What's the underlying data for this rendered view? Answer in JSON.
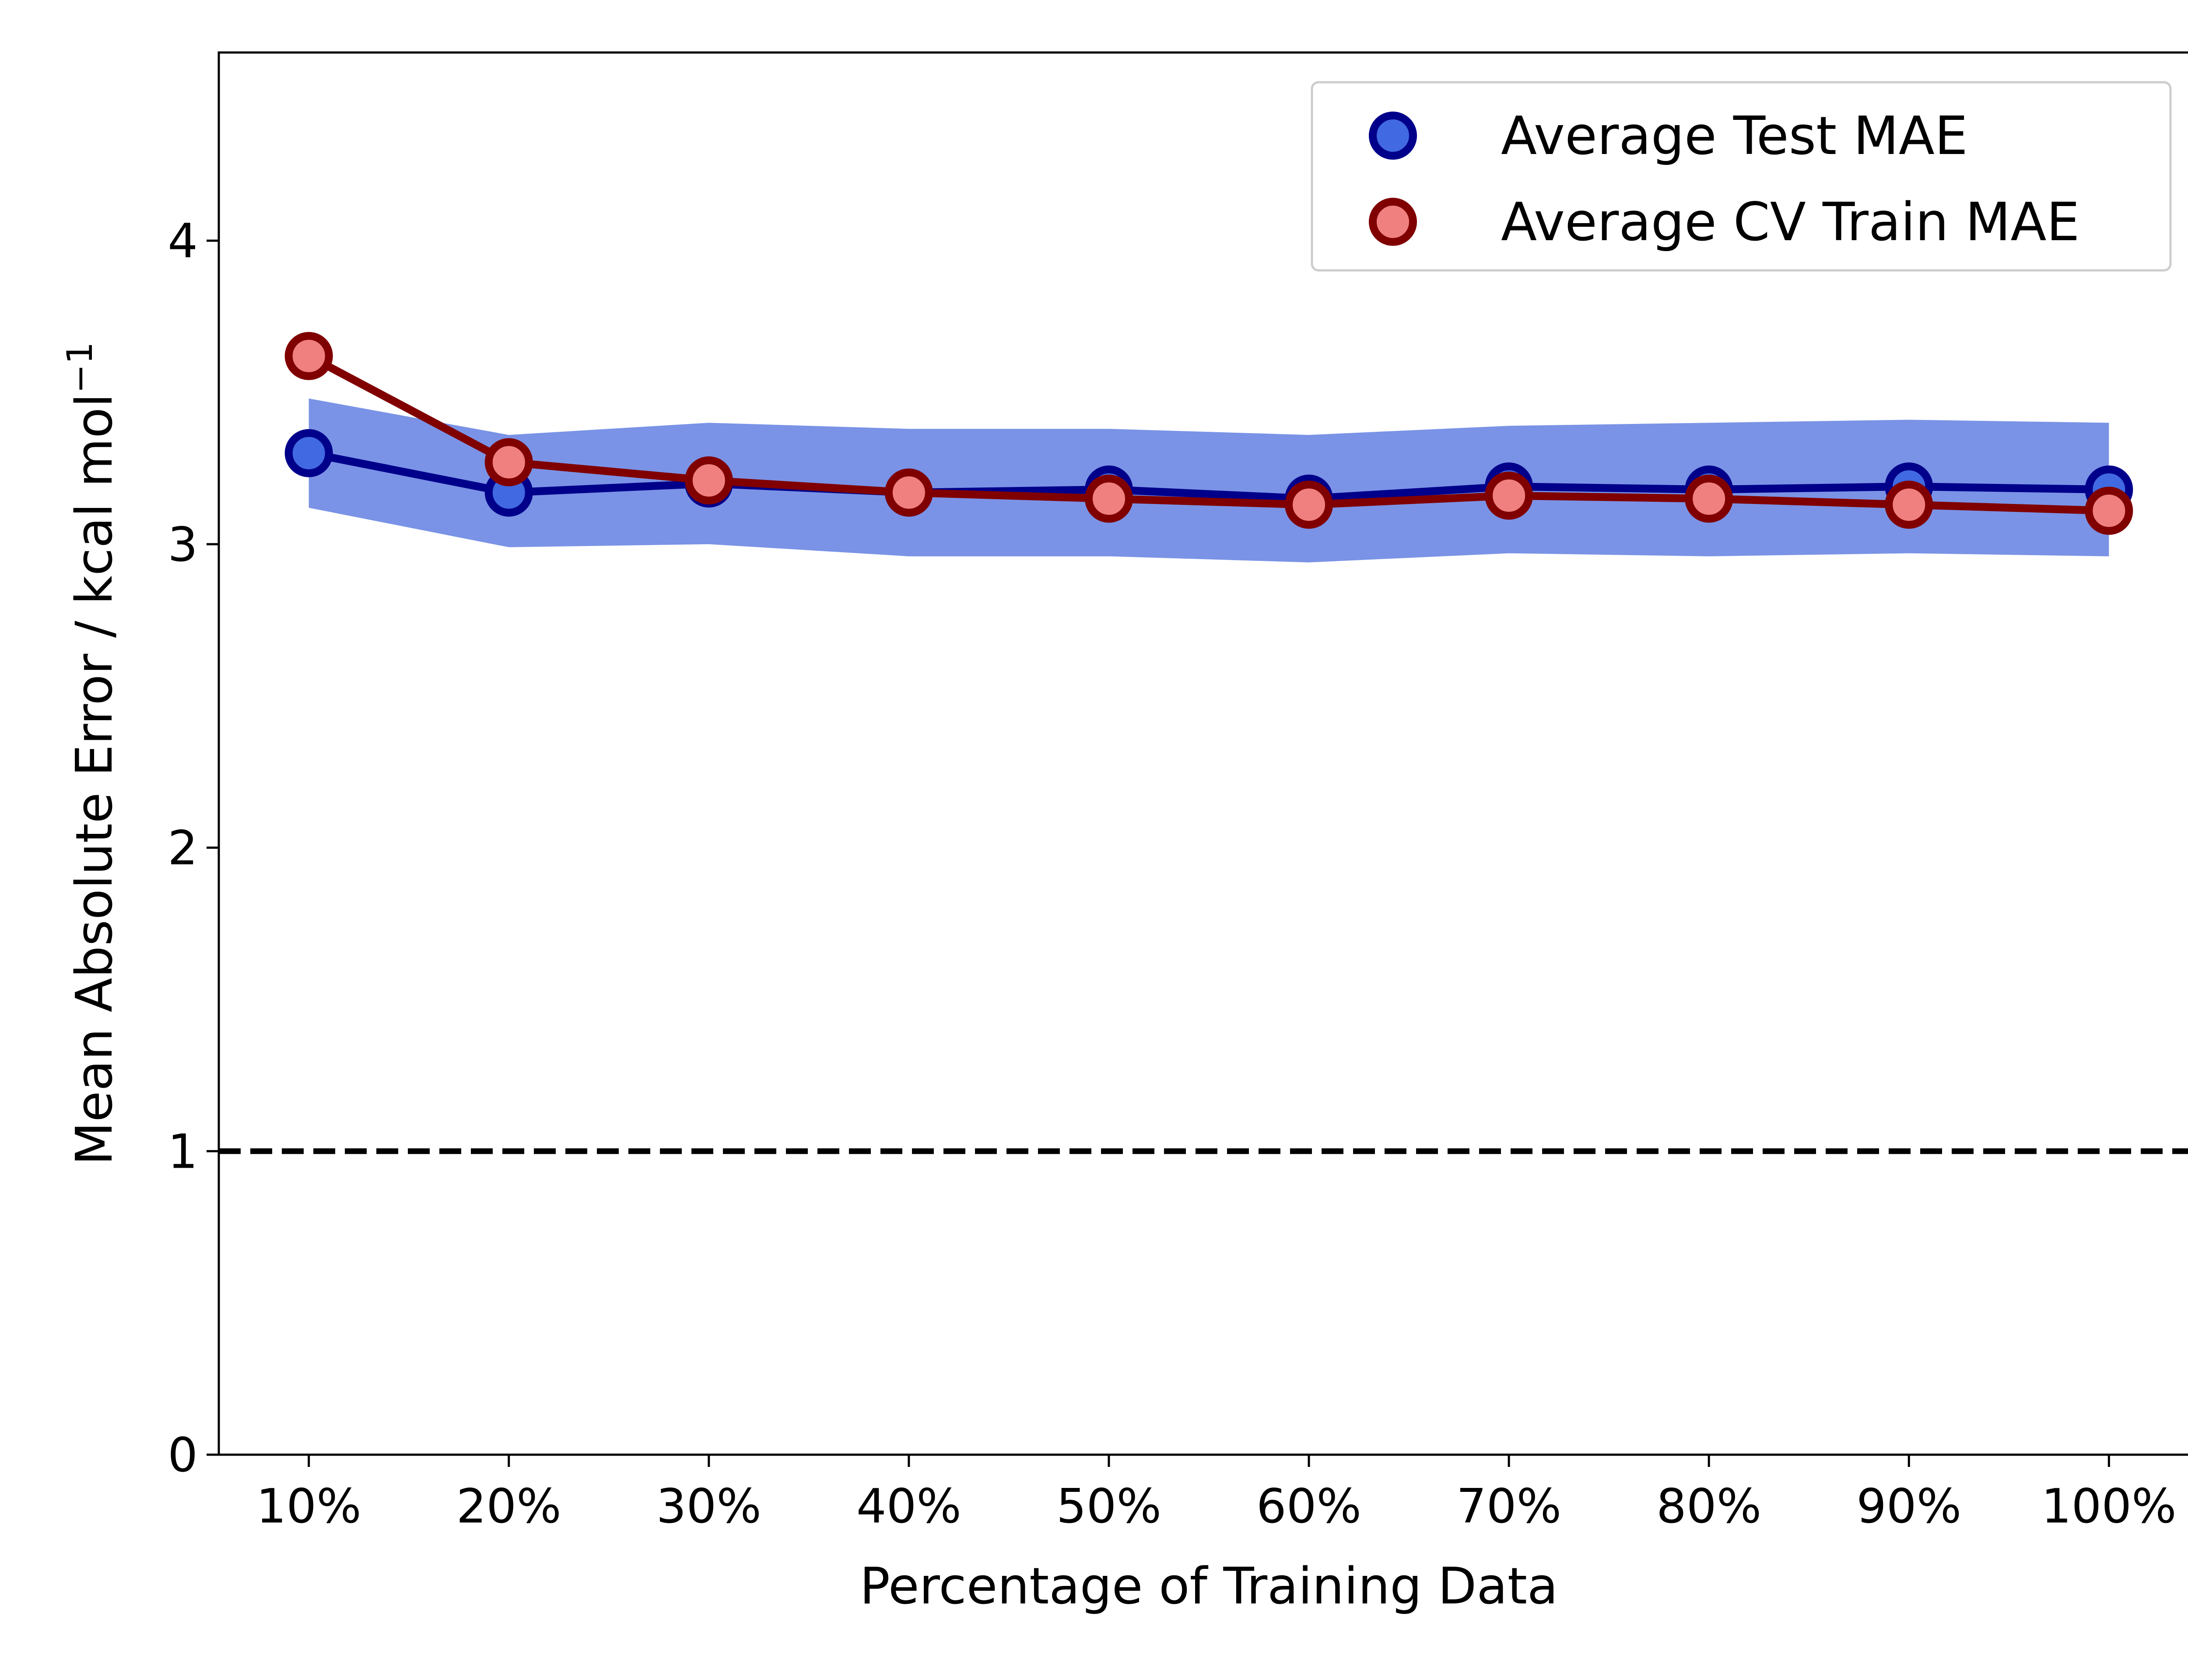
{
  "chart_data": {
    "type": "line",
    "title": "",
    "xlabel": "Percentage of Training Data",
    "ylabel": "Mean Absolute Error / kcal mol",
    "ylabel_sup": "−1",
    "categories": [
      "10%",
      "20%",
      "30%",
      "40%",
      "50%",
      "60%",
      "70%",
      "80%",
      "90%",
      "100%"
    ],
    "ylim": [
      0,
      4.62
    ],
    "yticks": [
      0,
      1,
      2,
      3,
      4
    ],
    "grid": false,
    "legend_position": "top-right",
    "series": [
      {
        "name": "Average Test MAE",
        "values": [
          3.3,
          3.17,
          3.2,
          3.17,
          3.18,
          3.15,
          3.19,
          3.18,
          3.19,
          3.18
        ],
        "band_lower": [
          3.12,
          2.99,
          3.0,
          2.96,
          2.96,
          2.94,
          2.97,
          2.96,
          2.97,
          2.96
        ],
        "band_upper": [
          3.48,
          3.36,
          3.4,
          3.38,
          3.38,
          3.36,
          3.39,
          3.4,
          3.41,
          3.4
        ],
        "line_color": "#00008b",
        "marker_fill": "#4169e1",
        "band_color": "#7a93e6"
      },
      {
        "name": "Average CV Train MAE",
        "values": [
          3.62,
          3.27,
          3.21,
          3.17,
          3.15,
          3.13,
          3.16,
          3.15,
          3.13,
          3.11
        ],
        "line_color": "#800000",
        "marker_fill": "#f08080"
      }
    ],
    "reference_line": {
      "y": 1.0,
      "style": "dashed",
      "color": "#000000"
    }
  }
}
